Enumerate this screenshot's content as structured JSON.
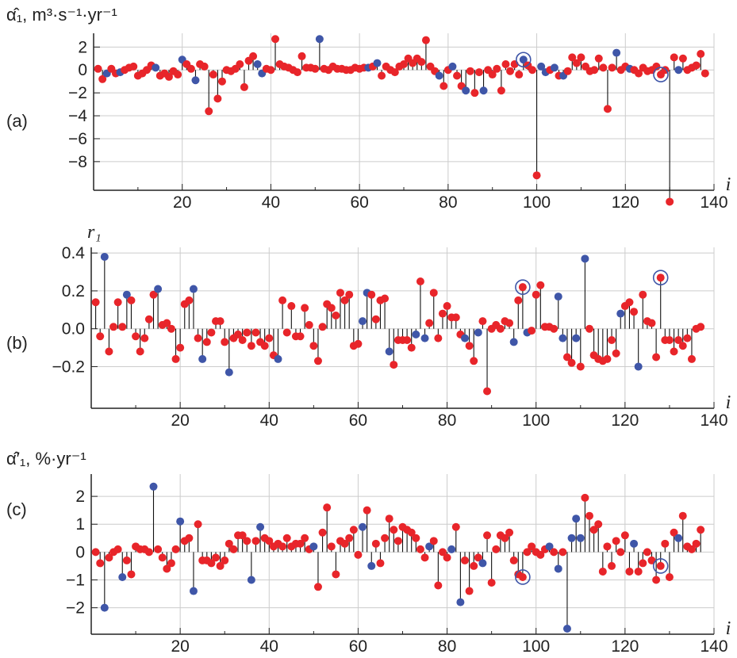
{
  "chart_data": [
    {
      "type": "scatter",
      "style": "stem",
      "panel": "(a)",
      "ylabel": "α̂₁, m³·s⁻¹·yr⁻¹",
      "xlabel": "i",
      "xlim": [
        0,
        140
      ],
      "ylim": [
        -10.5,
        3.2
      ],
      "xticks": [
        "20",
        "40",
        "60",
        "80",
        "100",
        "120",
        "140"
      ],
      "yticks": [
        "2",
        "0",
        "−2",
        "−4",
        "−6",
        "−8"
      ],
      "ytick_values": [
        2,
        0,
        -2,
        -4,
        -6,
        -8
      ],
      "grid": true,
      "colors": {
        "red": "#e8252a",
        "blue": "#3f56a8",
        "stem": "#111111",
        "grid": "#cccccc"
      },
      "x": [
        1,
        2,
        3,
        4,
        5,
        6,
        7,
        8,
        9,
        10,
        11,
        12,
        13,
        14,
        15,
        16,
        17,
        18,
        19,
        20,
        21,
        22,
        23,
        24,
        25,
        26,
        27,
        28,
        29,
        30,
        31,
        32,
        33,
        34,
        35,
        36,
        37,
        38,
        39,
        40,
        41,
        42,
        43,
        44,
        45,
        46,
        47,
        48,
        49,
        50,
        51,
        52,
        53,
        54,
        55,
        56,
        57,
        58,
        59,
        60,
        61,
        62,
        63,
        64,
        65,
        66,
        67,
        68,
        69,
        70,
        71,
        72,
        73,
        74,
        75,
        76,
        77,
        78,
        79,
        80,
        81,
        82,
        83,
        84,
        85,
        86,
        87,
        88,
        89,
        90,
        91,
        92,
        93,
        94,
        95,
        96,
        97,
        98,
        99,
        100,
        101,
        102,
        103,
        104,
        105,
        106,
        107,
        108,
        109,
        110,
        111,
        112,
        113,
        114,
        115,
        116,
        117,
        118,
        119,
        120,
        121,
        122,
        123,
        124,
        125,
        126,
        127,
        128,
        129,
        130,
        131,
        132,
        133,
        134,
        135,
        136,
        137,
        138
      ],
      "y": [
        0.1,
        -0.8,
        -0.3,
        0.1,
        -0.3,
        -0.2,
        0.0,
        0.2,
        0.3,
        -0.5,
        -0.3,
        0.0,
        0.4,
        0.2,
        -0.5,
        -0.3,
        -0.6,
        -0.1,
        -0.4,
        0.9,
        0.5,
        0.1,
        -0.9,
        0.5,
        0.3,
        -3.6,
        -0.4,
        -2.5,
        -1.0,
        0.0,
        -0.1,
        0.1,
        0.5,
        -1.5,
        0.8,
        1.2,
        0.5,
        -0.3,
        0.1,
        0.0,
        2.7,
        0.5,
        0.3,
        0.2,
        0.0,
        -0.2,
        1.2,
        0.2,
        0.2,
        0.1,
        2.7,
        0.1,
        0.0,
        0.3,
        0.1,
        0.1,
        0.0,
        0.0,
        0.2,
        0.1,
        0.2,
        0.2,
        0.3,
        0.6,
        -0.5,
        0.3,
        0.0,
        -0.2,
        0.3,
        0.5,
        1.0,
        0.6,
        1.0,
        0.7,
        2.6,
        0.3,
        -0.1,
        -0.5,
        -1.4,
        0.0,
        0.3,
        -0.5,
        -1.4,
        -1.8,
        -0.1,
        -2.0,
        -0.2,
        -1.8,
        0.0,
        -0.4,
        0.1,
        -1.8,
        0.5,
        -0.1,
        0.5,
        -0.4,
        0.9,
        0.4,
        0.0,
        -9.2,
        0.3,
        -0.2,
        0.0,
        0.2,
        -0.5,
        -0.5,
        -0.1,
        1.1,
        0.6,
        1.1,
        0.3,
        -0.1,
        0.0,
        1.0,
        0.2,
        -3.4,
        0.2,
        1.5,
        0.0,
        0.3,
        0.1,
        0.0,
        -0.3,
        0.2,
        -0.1,
        0.0,
        0.3,
        -0.4,
        0.0,
        -11.5,
        1.1,
        0.0,
        1.0,
        0.0,
        0.2,
        0.4,
        1.4,
        -0.3
      ],
      "point_colors": "rrbrrbrrrrrrrbrrrrrbrrbrrrrrrrrrrrrrbbrrrrrrrrrrrrbrrrrrrrrrrbrbrrrrrrrrrrrrrbrrbrrbrrrbrrrrrrrrbrrrbbrbrbrrrrrrrrrrrbrrbrrrrrrrrrrbr",
      "circled": [
        97,
        128
      ]
    },
    {
      "type": "scatter",
      "style": "stem",
      "panel": "(b)",
      "ylabel": "r₁",
      "xlabel": "i",
      "xlim": [
        0,
        140
      ],
      "ylim": [
        -0.42,
        0.43
      ],
      "xticks": [
        "20",
        "40",
        "60",
        "80",
        "100",
        "120",
        "140"
      ],
      "yticks": [
        "0.4",
        "0.2",
        "0.0",
        "−0.2"
      ],
      "ytick_values": [
        0.4,
        0.2,
        0.0,
        -0.2
      ],
      "grid": true,
      "colors": {
        "red": "#e8252a",
        "blue": "#3f56a8",
        "stem": "#111111",
        "grid": "#cccccc"
      },
      "x": [
        1,
        2,
        3,
        4,
        5,
        6,
        7,
        8,
        9,
        10,
        11,
        12,
        13,
        14,
        15,
        16,
        17,
        18,
        19,
        20,
        21,
        22,
        23,
        24,
        25,
        26,
        27,
        28,
        29,
        30,
        31,
        32,
        33,
        34,
        35,
        36,
        37,
        38,
        39,
        40,
        41,
        42,
        43,
        44,
        45,
        46,
        47,
        48,
        49,
        50,
        51,
        52,
        53,
        54,
        55,
        56,
        57,
        58,
        59,
        60,
        61,
        62,
        63,
        64,
        65,
        66,
        67,
        68,
        69,
        70,
        71,
        72,
        73,
        74,
        75,
        76,
        77,
        78,
        79,
        80,
        81,
        82,
        83,
        84,
        85,
        86,
        87,
        88,
        89,
        90,
        91,
        92,
        93,
        94,
        95,
        96,
        97,
        98,
        99,
        100,
        101,
        102,
        103,
        104,
        105,
        106,
        107,
        108,
        109,
        110,
        111,
        112,
        113,
        114,
        115,
        116,
        117,
        118,
        119,
        120,
        121,
        122,
        123,
        124,
        125,
        126,
        127,
        128,
        129,
        130,
        131,
        132,
        133,
        134,
        135,
        136,
        137
      ],
      "y": [
        0.14,
        -0.04,
        0.38,
        -0.12,
        0.01,
        0.14,
        0.01,
        0.18,
        0.15,
        -0.04,
        -0.12,
        -0.05,
        0.05,
        0.18,
        0.21,
        0.02,
        0.03,
        0.0,
        -0.16,
        -0.1,
        0.13,
        0.15,
        0.21,
        -0.05,
        -0.16,
        -0.07,
        -0.02,
        0.04,
        0.04,
        -0.07,
        -0.23,
        -0.05,
        -0.03,
        -0.06,
        -0.02,
        -0.09,
        -0.02,
        -0.07,
        -0.09,
        -0.05,
        -0.14,
        -0.16,
        0.15,
        -0.02,
        0.12,
        -0.04,
        -0.04,
        0.11,
        0.02,
        -0.09,
        -0.17,
        0.01,
        0.13,
        0.11,
        0.07,
        0.19,
        0.15,
        0.18,
        -0.09,
        -0.08,
        0.04,
        0.19,
        0.18,
        0.05,
        0.15,
        0.16,
        -0.12,
        -0.19,
        -0.06,
        -0.06,
        -0.06,
        -0.1,
        -0.03,
        0.25,
        -0.05,
        0.03,
        0.19,
        -0.05,
        0.08,
        0.12,
        0.06,
        0.06,
        -0.03,
        -0.05,
        -0.09,
        -0.17,
        -0.02,
        0.04,
        -0.33,
        0.0,
        0.02,
        0.0,
        0.04,
        0.03,
        -0.07,
        0.15,
        0.22,
        -0.02,
        -0.01,
        0.18,
        0.23,
        0.01,
        0.01,
        0.0,
        0.17,
        -0.05,
        -0.15,
        -0.18,
        -0.05,
        -0.2,
        0.37,
        0.0,
        -0.14,
        -0.16,
        -0.17,
        -0.16,
        -0.06,
        -0.13,
        0.08,
        0.12,
        0.14,
        0.09,
        -0.2,
        0.18,
        0.04,
        0.03,
        -0.15,
        0.27,
        -0.06,
        -0.06,
        -0.12,
        -0.06,
        -0.09,
        -0.05,
        -0.16,
        0.0,
        0.01
      ],
      "point_colors": "rrbrrrrbrrrrrrbrrrrrrrbrbrrrrrbrrrrrrrrrrbrrrrrrrrrrrrrrrrrrbbrrrrbrrrrrbrbrrrrrrrrbrrbrrrrrrrbrrbrrrrrrbbrrbrbrrrrrrrbrrrbrrrrrrrrr",
      "circled": [
        97,
        128
      ]
    },
    {
      "type": "scatter",
      "style": "stem",
      "panel": "(c)",
      "ylabel": "α̂′₁, %·yr⁻¹",
      "xlabel": "i",
      "xlim": [
        0,
        140
      ],
      "ylim": [
        -2.95,
        2.8
      ],
      "xticks": [
        "20",
        "40",
        "60",
        "80",
        "100",
        "120",
        "140"
      ],
      "yticks": [
        "2",
        "1",
        "0",
        "−1",
        "−2"
      ],
      "ytick_values": [
        2,
        1,
        0,
        -1,
        -2
      ],
      "grid": true,
      "colors": {
        "red": "#e8252a",
        "blue": "#3f56a8",
        "stem": "#111111",
        "grid": "#cccccc"
      },
      "x": [
        1,
        2,
        3,
        4,
        5,
        6,
        7,
        8,
        9,
        10,
        11,
        12,
        13,
        14,
        15,
        16,
        17,
        18,
        19,
        20,
        21,
        22,
        23,
        24,
        25,
        26,
        27,
        28,
        29,
        30,
        31,
        32,
        33,
        34,
        35,
        36,
        37,
        38,
        39,
        40,
        41,
        42,
        43,
        44,
        45,
        46,
        47,
        48,
        49,
        50,
        51,
        52,
        53,
        54,
        55,
        56,
        57,
        58,
        59,
        60,
        61,
        62,
        63,
        64,
        65,
        66,
        67,
        68,
        69,
        70,
        71,
        72,
        73,
        74,
        75,
        76,
        77,
        78,
        79,
        80,
        81,
        82,
        83,
        84,
        85,
        86,
        87,
        88,
        89,
        90,
        91,
        92,
        93,
        94,
        95,
        96,
        97,
        98,
        99,
        100,
        101,
        102,
        103,
        104,
        105,
        106,
        107,
        108,
        109,
        110,
        111,
        112,
        113,
        114,
        115,
        116,
        117,
        118,
        119,
        120,
        121,
        122,
        123,
        124,
        125,
        126,
        127,
        128,
        129,
        130,
        131,
        132,
        133,
        134,
        135,
        136,
        137
      ],
      "y": [
        0.0,
        -0.4,
        -2.0,
        -0.2,
        0.0,
        0.1,
        -0.9,
        -0.3,
        -0.8,
        0.2,
        0.1,
        0.1,
        0.0,
        2.35,
        0.1,
        -0.2,
        -0.6,
        -0.4,
        0.1,
        1.1,
        0.4,
        0.5,
        -1.4,
        1.0,
        -0.3,
        -0.3,
        -0.4,
        -0.2,
        -0.5,
        -0.3,
        0.3,
        0.1,
        0.6,
        0.6,
        0.4,
        -1.0,
        0.4,
        0.9,
        0.5,
        0.4,
        0.2,
        0.3,
        0.2,
        0.5,
        0.2,
        0.3,
        0.3,
        0.5,
        0.1,
        0.2,
        -1.25,
        0.7,
        1.6,
        0.2,
        -0.8,
        0.4,
        0.3,
        0.5,
        0.8,
        -0.1,
        0.9,
        1.5,
        -0.5,
        0.3,
        -0.4,
        0.5,
        1.2,
        0.8,
        0.4,
        0.9,
        0.8,
        0.7,
        0.5,
        0.1,
        -0.2,
        0.2,
        0.4,
        -1.2,
        0.0,
        -0.2,
        0.1,
        0.9,
        -1.8,
        -0.3,
        -1.4,
        -0.5,
        -0.2,
        -0.4,
        0.6,
        -1.1,
        0.1,
        0.6,
        0.5,
        0.7,
        -0.3,
        -0.8,
        -0.9,
        0.0,
        0.2,
        0.0,
        -0.1,
        0.1,
        0.2,
        0.0,
        -0.6,
        0.0,
        -2.75,
        0.5,
        1.2,
        0.5,
        1.95,
        1.3,
        0.8,
        1.0,
        -0.7,
        0.2,
        -0.5,
        0.4,
        0.0,
        0.6,
        -0.7,
        0.3,
        -0.7,
        -0.4,
        0.0,
        -0.3,
        -1.0,
        -0.5,
        0.3,
        -0.9,
        0.7,
        0.5,
        1.3,
        0.2,
        0.1,
        0.3,
        0.8
      ],
      "point_colors": "rrbrrrbrrrrrrbrrrrrbrrbrrrrrrrrrrrrbrbrrrrrrrrrrrbrrrrrrrrrrbrbrrrrrrrrrrrrbrrrrbrbrrrrbrrrrrrrrrrrrrrbrbrbbbbrrrrrrrrrrrbrrrrrrrrrb",
      "circled": [
        97,
        128
      ]
    }
  ]
}
